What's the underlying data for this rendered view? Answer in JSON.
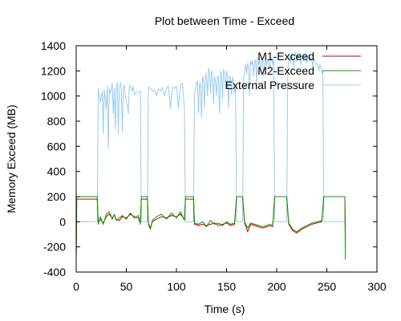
{
  "chart_data": {
    "type": "line",
    "title": "Plot between Time - Exceed",
    "xlabel": "Time (s)",
    "ylabel": "Memory Exceed (MB)",
    "xlim": [
      0,
      300
    ],
    "ylim": [
      -400,
      1400
    ],
    "xticks": [
      0,
      50,
      100,
      150,
      200,
      250,
      300
    ],
    "yticks": [
      -400,
      -200,
      0,
      200,
      400,
      600,
      800,
      1000,
      1200,
      1400
    ],
    "grid": false,
    "legend_position": "top-right",
    "series": [
      {
        "name": "M1-Exceed",
        "color": "#cc0000",
        "points": [
          [
            0,
            -290
          ],
          [
            0.5,
            180
          ],
          [
            20,
            180
          ],
          [
            21,
            180
          ],
          [
            22,
            0
          ],
          [
            24,
            20
          ],
          [
            27,
            -10
          ],
          [
            30,
            40
          ],
          [
            33,
            60
          ],
          [
            36,
            30
          ],
          [
            38,
            50
          ],
          [
            40,
            20
          ],
          [
            43,
            10
          ],
          [
            46,
            40
          ],
          [
            50,
            30
          ],
          [
            54,
            60
          ],
          [
            58,
            40
          ],
          [
            62,
            30
          ],
          [
            64,
            -10
          ],
          [
            65,
            180
          ],
          [
            71,
            180
          ],
          [
            72,
            -10
          ],
          [
            74,
            -50
          ],
          [
            76,
            0
          ],
          [
            80,
            20
          ],
          [
            85,
            40
          ],
          [
            90,
            30
          ],
          [
            95,
            50
          ],
          [
            100,
            40
          ],
          [
            104,
            60
          ],
          [
            108,
            20
          ],
          [
            109,
            180
          ],
          [
            117,
            180
          ],
          [
            118,
            -20
          ],
          [
            122,
            -30
          ],
          [
            126,
            -20
          ],
          [
            130,
            -30
          ],
          [
            134,
            -20
          ],
          [
            138,
            -10
          ],
          [
            142,
            -30
          ],
          [
            146,
            -20
          ],
          [
            150,
            -10
          ],
          [
            154,
            -30
          ],
          [
            158,
            -20
          ],
          [
            160,
            200
          ],
          [
            166,
            200
          ],
          [
            168,
            -10
          ],
          [
            171,
            -80
          ],
          [
            174,
            -20
          ],
          [
            178,
            -30
          ],
          [
            182,
            -40
          ],
          [
            186,
            -50
          ],
          [
            190,
            -40
          ],
          [
            193,
            -30
          ],
          [
            196,
            -40
          ],
          [
            198,
            200
          ],
          [
            210,
            200
          ],
          [
            212,
            -20
          ],
          [
            216,
            -70
          ],
          [
            220,
            -90
          ],
          [
            225,
            -60
          ],
          [
            230,
            -40
          ],
          [
            235,
            -20
          ],
          [
            240,
            -10
          ],
          [
            245,
            0
          ],
          [
            247,
            200
          ],
          [
            268,
            200
          ],
          [
            268.5,
            -140
          ]
        ]
      },
      {
        "name": "M2-Exceed",
        "color": "#009900",
        "points": [
          [
            0,
            -300
          ],
          [
            0.5,
            200
          ],
          [
            20,
            200
          ],
          [
            21,
            200
          ],
          [
            22,
            -20
          ],
          [
            24,
            40
          ],
          [
            27,
            -20
          ],
          [
            30,
            60
          ],
          [
            33,
            80
          ],
          [
            36,
            20
          ],
          [
            38,
            60
          ],
          [
            40,
            10
          ],
          [
            43,
            30
          ],
          [
            46,
            50
          ],
          [
            50,
            20
          ],
          [
            54,
            70
          ],
          [
            58,
            30
          ],
          [
            62,
            50
          ],
          [
            64,
            -20
          ],
          [
            65,
            200
          ],
          [
            71,
            200
          ],
          [
            72,
            -20
          ],
          [
            74,
            -60
          ],
          [
            76,
            10
          ],
          [
            80,
            40
          ],
          [
            85,
            60
          ],
          [
            90,
            20
          ],
          [
            95,
            70
          ],
          [
            100,
            30
          ],
          [
            104,
            80
          ],
          [
            108,
            10
          ],
          [
            109,
            200
          ],
          [
            117,
            200
          ],
          [
            118,
            -10
          ],
          [
            122,
            -20
          ],
          [
            126,
            0
          ],
          [
            130,
            -40
          ],
          [
            134,
            10
          ],
          [
            138,
            -20
          ],
          [
            142,
            -10
          ],
          [
            146,
            -30
          ],
          [
            150,
            0
          ],
          [
            154,
            -20
          ],
          [
            158,
            -10
          ],
          [
            160,
            200
          ],
          [
            166,
            200
          ],
          [
            168,
            0
          ],
          [
            171,
            -50
          ],
          [
            174,
            -10
          ],
          [
            178,
            -20
          ],
          [
            182,
            -30
          ],
          [
            186,
            -40
          ],
          [
            190,
            -30
          ],
          [
            193,
            -20
          ],
          [
            196,
            -30
          ],
          [
            198,
            200
          ],
          [
            210,
            200
          ],
          [
            212,
            -10
          ],
          [
            216,
            -60
          ],
          [
            220,
            -80
          ],
          [
            225,
            -50
          ],
          [
            230,
            -30
          ],
          [
            235,
            -10
          ],
          [
            240,
            0
          ],
          [
            245,
            10
          ],
          [
            247,
            200
          ],
          [
            268,
            200
          ],
          [
            268.5,
            -300
          ]
        ]
      },
      {
        "name": "External Pressure",
        "color": "#99ccee",
        "points": [
          [
            0,
            0
          ],
          [
            20,
            0
          ],
          [
            21,
            0
          ],
          [
            22,
            1060
          ],
          [
            24,
            950
          ],
          [
            26,
            1040
          ],
          [
            27,
            700
          ],
          [
            28,
            1050
          ],
          [
            30,
            900
          ],
          [
            31,
            1080
          ],
          [
            32,
            580
          ],
          [
            33,
            1060
          ],
          [
            34,
            1020
          ],
          [
            36,
            1100
          ],
          [
            37,
            860
          ],
          [
            38,
            1060
          ],
          [
            39,
            740
          ],
          [
            40,
            1070
          ],
          [
            41,
            1110
          ],
          [
            42,
            700
          ],
          [
            43,
            1070
          ],
          [
            44,
            1110
          ],
          [
            45,
            1050
          ],
          [
            46,
            720
          ],
          [
            47,
            1060
          ],
          [
            48,
            1090
          ],
          [
            49,
            1000
          ],
          [
            50,
            970
          ],
          [
            52,
            860
          ],
          [
            53,
            1080
          ],
          [
            54,
            1080
          ],
          [
            56,
            1040
          ],
          [
            57,
            1080
          ],
          [
            58,
            1010
          ],
          [
            60,
            1030
          ],
          [
            62,
            1030
          ],
          [
            64,
            1040
          ],
          [
            65,
            0
          ],
          [
            71,
            0
          ],
          [
            72,
            1070
          ],
          [
            74,
            1060
          ],
          [
            76,
            1040
          ],
          [
            78,
            1050
          ],
          [
            80,
            1000
          ],
          [
            82,
            1060
          ],
          [
            84,
            1040
          ],
          [
            86,
            1070
          ],
          [
            88,
            1000
          ],
          [
            90,
            1060
          ],
          [
            92,
            1080
          ],
          [
            94,
            900
          ],
          [
            96,
            1070
          ],
          [
            98,
            1060
          ],
          [
            100,
            1080
          ],
          [
            102,
            900
          ],
          [
            104,
            1090
          ],
          [
            106,
            1100
          ],
          [
            108,
            900
          ],
          [
            109,
            0
          ],
          [
            117,
            0
          ],
          [
            118,
            1010
          ],
          [
            120,
            1100
          ],
          [
            121,
            1120
          ],
          [
            122,
            860
          ],
          [
            123,
            1100
          ],
          [
            124,
            1100
          ],
          [
            125,
            830
          ],
          [
            126,
            1150
          ],
          [
            127,
            1140
          ],
          [
            128,
            900
          ],
          [
            129,
            1180
          ],
          [
            130,
            1150
          ],
          [
            131,
            1000
          ],
          [
            132,
            1220
          ],
          [
            133,
            1180
          ],
          [
            134,
            1020
          ],
          [
            135,
            1200
          ],
          [
            136,
            1180
          ],
          [
            137,
            940
          ],
          [
            138,
            1150
          ],
          [
            139,
            1120
          ],
          [
            140,
            1000
          ],
          [
            141,
            1160
          ],
          [
            142,
            1140
          ],
          [
            143,
            860
          ],
          [
            144,
            1200
          ],
          [
            145,
            1180
          ],
          [
            146,
            980
          ],
          [
            147,
            1210
          ],
          [
            148,
            1180
          ],
          [
            149,
            1060
          ],
          [
            150,
            1200
          ],
          [
            151,
            1170
          ],
          [
            152,
            900
          ],
          [
            153,
            1160
          ],
          [
            154,
            1140
          ],
          [
            155,
            1010
          ],
          [
            156,
            1150
          ],
          [
            157,
            1110
          ],
          [
            158,
            1030
          ],
          [
            159,
            1080
          ],
          [
            160,
            0
          ],
          [
            166,
            0
          ],
          [
            167,
            1150
          ],
          [
            168,
            1200
          ],
          [
            169,
            1250
          ],
          [
            170,
            1180
          ],
          [
            171,
            1260
          ],
          [
            172,
            1230
          ],
          [
            173,
            1000
          ],
          [
            174,
            1280
          ],
          [
            175,
            1250
          ],
          [
            176,
            1280
          ],
          [
            177,
            1160
          ],
          [
            178,
            1260
          ],
          [
            179,
            1290
          ],
          [
            180,
            1100
          ],
          [
            181,
            1300
          ],
          [
            182,
            1250
          ],
          [
            183,
            1290
          ],
          [
            184,
            1200
          ],
          [
            185,
            1270
          ],
          [
            186,
            1300
          ],
          [
            187,
            1160
          ],
          [
            188,
            1260
          ],
          [
            189,
            1290
          ],
          [
            190,
            1240
          ],
          [
            191,
            1300
          ],
          [
            192,
            1270
          ],
          [
            193,
            1210
          ],
          [
            194,
            1290
          ],
          [
            195,
            1300
          ],
          [
            196,
            1250
          ],
          [
            197,
            1290
          ],
          [
            198,
            0
          ],
          [
            210,
            0
          ],
          [
            211,
            1200
          ],
          [
            212,
            1280
          ],
          [
            213,
            1320
          ],
          [
            214,
            1260
          ],
          [
            215,
            1340
          ],
          [
            216,
            1300
          ],
          [
            217,
            1230
          ],
          [
            218,
            1320
          ],
          [
            219,
            1350
          ],
          [
            220,
            1270
          ],
          [
            221,
            1330
          ],
          [
            222,
            1300
          ],
          [
            223,
            1340
          ],
          [
            224,
            1250
          ],
          [
            225,
            1300
          ],
          [
            226,
            1330
          ],
          [
            227,
            1280
          ],
          [
            228,
            1310
          ],
          [
            229,
            1340
          ],
          [
            230,
            1260
          ],
          [
            231,
            1300
          ],
          [
            232,
            1330
          ],
          [
            233,
            1280
          ],
          [
            234,
            1310
          ],
          [
            235,
            1290
          ],
          [
            236,
            1240
          ],
          [
            237,
            1300
          ],
          [
            238,
            1280
          ],
          [
            239,
            1250
          ],
          [
            240,
            1260
          ],
          [
            241,
            1240
          ],
          [
            242,
            1200
          ],
          [
            243,
            1250
          ],
          [
            244,
            1230
          ],
          [
            245,
            1180
          ],
          [
            246,
            1200
          ],
          [
            247,
            0
          ],
          [
            268,
            0
          ]
        ]
      }
    ]
  }
}
